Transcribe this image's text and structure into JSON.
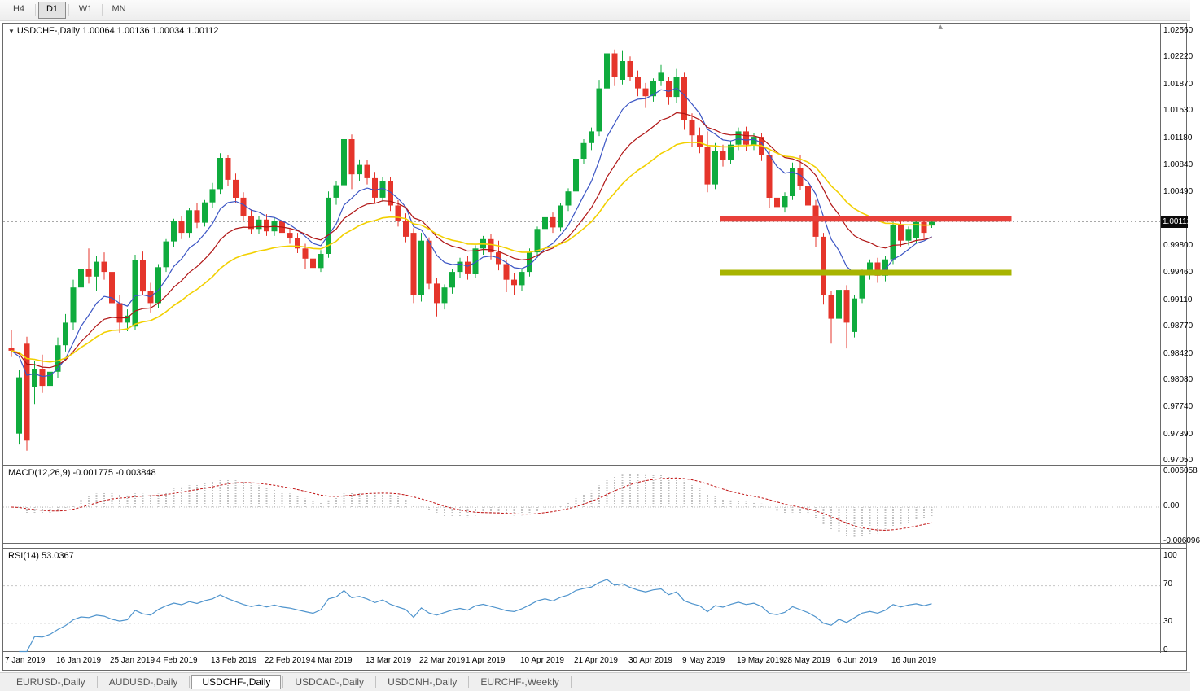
{
  "toolbar": {
    "timeframes": [
      "H4",
      "D1",
      "W1",
      "MN"
    ],
    "active_timeframe": "D1"
  },
  "icons": {
    "chart_menu": "▼",
    "autoscroll_marker": "▴"
  },
  "main_chart": {
    "title": "USDCHF-,Daily 1.00064 1.00136 1.00034 1.00112",
    "current_price_label": "1.00112",
    "price_axis_labels": [
      "1.02560",
      "1.02220",
      "1.01870",
      "1.01530",
      "1.01180",
      "1.00840",
      "1.00490",
      "0.99800",
      "0.99460",
      "0.99110",
      "0.98770",
      "0.98420",
      "0.98080",
      "0.97740",
      "0.97390",
      "0.97050"
    ]
  },
  "macd_panel": {
    "title": "MACD(12,26,9) -0.001775 -0.003848",
    "axis_labels": [
      "0.006058",
      "0.00",
      "-0.006096"
    ]
  },
  "rsi_panel": {
    "title": "RSI(14) 53.0367",
    "axis_labels": [
      "100",
      "70",
      "30",
      "0"
    ]
  },
  "time_axis": {
    "labels": [
      {
        "text": "7 Jan 2019",
        "index": 0
      },
      {
        "text": "16 Jan 2019",
        "index": 7
      },
      {
        "text": "25 Jan 2019",
        "index": 14
      },
      {
        "text": "4 Feb 2019",
        "index": 20
      },
      {
        "text": "13 Feb 2019",
        "index": 27
      },
      {
        "text": "22 Feb 2019",
        "index": 34
      },
      {
        "text": "4 Mar 2019",
        "index": 40
      },
      {
        "text": "13 Mar 2019",
        "index": 47
      },
      {
        "text": "22 Mar 2019",
        "index": 54
      },
      {
        "text": "1 Apr 2019",
        "index": 60
      },
      {
        "text": "10 Apr 2019",
        "index": 67
      },
      {
        "text": "21 Apr 2019",
        "index": 74
      },
      {
        "text": "30 Apr 2019",
        "index": 81
      },
      {
        "text": "9 May 2019",
        "index": 88
      },
      {
        "text": "19 May 2019",
        "index": 95
      },
      {
        "text": "28 May 2019",
        "index": 101
      },
      {
        "text": "6 Jun 2019",
        "index": 108
      },
      {
        "text": "16 Jun 2019",
        "index": 115
      }
    ]
  },
  "tabs": {
    "items": [
      "EURUSD-,Daily",
      "AUDUSD-,Daily",
      "USDCHF-,Daily",
      "USDCAD-,Daily",
      "USDCNH-,Daily",
      "EURCHF-,Weekly"
    ],
    "active_index": 2
  },
  "colors": {
    "bull": "#0fab3d",
    "bear": "#e5352b",
    "ma_fast": "#3b55c4",
    "ma_mid": "#b01515",
    "ma_slow": "#f2d000",
    "macd_hist": "#c0c0c0",
    "macd_signal": "#c01010",
    "rsi_line": "#4f94cd",
    "resistance": "#e8403a",
    "support": "#a8b400",
    "price_badge_bg": "#0a0a0a",
    "current_price_line": "#a8a8a8"
  },
  "chart_data": {
    "type": "candlestick",
    "symbol": "USDCHF",
    "timeframe": "Daily",
    "ohlc": {
      "open": 1.00064,
      "high": 1.00136,
      "low": 1.00034,
      "close": 1.00112
    },
    "ylim": [
      0.97,
      1.0265
    ],
    "candles": [
      [
        0.985,
        0.9872,
        0.9838,
        0.9846
      ],
      [
        0.974,
        0.9821,
        0.9726,
        0.9812
      ],
      [
        0.9855,
        0.9864,
        0.9718,
        0.9731
      ],
      [
        0.98,
        0.9833,
        0.9778,
        0.9823
      ],
      [
        0.9823,
        0.9841,
        0.9792,
        0.9801
      ],
      [
        0.9801,
        0.9827,
        0.9786,
        0.9819
      ],
      [
        0.9819,
        0.9863,
        0.9811,
        0.9853
      ],
      [
        0.9853,
        0.9893,
        0.9845,
        0.9882
      ],
      [
        0.9882,
        0.9937,
        0.9873,
        0.9927
      ],
      [
        0.9927,
        0.9962,
        0.9907,
        0.9951
      ],
      [
        0.9951,
        0.9977,
        0.9932,
        0.9941
      ],
      [
        0.9941,
        0.9967,
        0.9922,
        0.996
      ],
      [
        0.996,
        0.9972,
        0.9937,
        0.9947
      ],
      [
        0.9947,
        0.9963,
        0.9903,
        0.9907
      ],
      [
        0.9907,
        0.9917,
        0.9869,
        0.9882
      ],
      [
        0.9882,
        0.9899,
        0.9871,
        0.9891
      ],
      [
        0.9877,
        0.9969,
        0.9873,
        0.9962
      ],
      [
        0.9962,
        0.9973,
        0.9917,
        0.9922
      ],
      [
        0.9922,
        0.9933,
        0.9895,
        0.9907
      ],
      [
        0.9907,
        0.9957,
        0.9901,
        0.9953
      ],
      [
        0.9953,
        0.9989,
        0.9947,
        0.9986
      ],
      [
        0.9986,
        1.0015,
        0.9979,
        1.0012
      ],
      [
        1.0012,
        1.0019,
        0.9989,
        0.9997
      ],
      [
        0.9997,
        1.0029,
        0.9991,
        1.0026
      ],
      [
        1.0026,
        1.0035,
        1.0003,
        1.001
      ],
      [
        1.001,
        1.0039,
        1.0005,
        1.0036
      ],
      [
        1.0036,
        1.0061,
        1.0029,
        1.0053
      ],
      [
        1.0053,
        1.0099,
        1.0047,
        1.0093
      ],
      [
        1.0093,
        1.0097,
        1.0057,
        1.0065
      ],
      [
        1.0065,
        1.0073,
        1.0035,
        1.0042
      ],
      [
        1.0042,
        1.0049,
        1.0013,
        1.0019
      ],
      [
        1.0019,
        1.0027,
        0.9995,
        1.0002
      ],
      [
        1.0002,
        1.0019,
        0.9995,
        1.0014
      ],
      [
        1.0014,
        1.0021,
        0.9993,
        0.9999
      ],
      [
        0.9999,
        1.0017,
        0.9993,
        1.0012
      ],
      [
        1.0012,
        1.0017,
        0.9991,
        0.9997
      ],
      [
        0.9997,
        1.0003,
        0.9983,
        0.999
      ],
      [
        0.999,
        0.9997,
        0.9971,
        0.9977
      ],
      [
        0.9977,
        0.9983,
        0.9951,
        0.9964
      ],
      [
        0.9964,
        0.9973,
        0.9941,
        0.9952
      ],
      [
        0.9952,
        0.9975,
        0.9947,
        0.997
      ],
      [
        0.997,
        1.005,
        0.9965,
        1.0042
      ],
      [
        1.0042,
        1.0063,
        1.0033,
        1.0058
      ],
      [
        1.0058,
        1.0127,
        1.0051,
        1.0117
      ],
      [
        1.0117,
        1.0123,
        1.0053,
        1.0072
      ],
      [
        1.0072,
        1.0091,
        1.0063,
        1.0084
      ],
      [
        1.0084,
        1.009,
        1.0059,
        1.0067
      ],
      [
        1.0067,
        1.0075,
        1.0035,
        1.0042
      ],
      [
        1.0042,
        1.0069,
        1.0037,
        1.0063
      ],
      [
        1.0063,
        1.0069,
        1.0025,
        1.0032
      ],
      [
        1.0032,
        1.0039,
        1.0005,
        1.0012
      ],
      [
        1.0012,
        1.0022,
        0.9985,
        0.9992
      ],
      [
        0.9997,
        1.0003,
        0.9907,
        0.9917
      ],
      [
        0.9917,
        0.9997,
        0.9909,
        0.9987
      ],
      [
        0.9987,
        0.9991,
        0.9925,
        0.9932
      ],
      [
        0.9932,
        0.9939,
        0.989,
        0.9907
      ],
      [
        0.9907,
        0.9931,
        0.9899,
        0.9927
      ],
      [
        0.9927,
        0.9951,
        0.9919,
        0.9947
      ],
      [
        0.9947,
        0.9965,
        0.9939,
        0.996
      ],
      [
        0.996,
        0.9967,
        0.9937,
        0.9944
      ],
      [
        0.9944,
        0.9981,
        0.9939,
        0.9977
      ],
      [
        0.9977,
        0.9993,
        0.9969,
        0.9989
      ],
      [
        0.9989,
        0.9995,
        0.9963,
        0.9972
      ],
      [
        0.9972,
        0.9987,
        0.9949,
        0.9957
      ],
      [
        0.9957,
        0.9963,
        0.9921,
        0.9937
      ],
      [
        0.9937,
        0.9945,
        0.9917,
        0.993
      ],
      [
        0.993,
        0.9951,
        0.9923,
        0.9947
      ],
      [
        0.9947,
        0.9977,
        0.9941,
        0.9972
      ],
      [
        0.9972,
        1.0005,
        0.9965,
        1.0002
      ],
      [
        1.0002,
        1.0022,
        0.9995,
        1.0017
      ],
      [
        1.0017,
        1.0023,
        0.9997,
        1.0004
      ],
      [
        1.0004,
        1.0035,
        0.9999,
        1.0032
      ],
      [
        1.0032,
        1.0054,
        1.0025,
        1.005
      ],
      [
        1.005,
        1.0099,
        1.0043,
        1.0092
      ],
      [
        1.0092,
        1.0117,
        1.0085,
        1.0112
      ],
      [
        1.0112,
        1.0132,
        1.0103,
        1.0127
      ],
      [
        1.0127,
        1.0193,
        1.0121,
        1.0182
      ],
      [
        1.0182,
        1.0237,
        1.0175,
        1.0227
      ],
      [
        1.0227,
        1.0232,
        1.0185,
        1.0197
      ],
      [
        1.0193,
        1.023,
        1.0187,
        1.0217
      ],
      [
        1.0217,
        1.0223,
        1.0191,
        1.0197
      ],
      [
        1.0197,
        1.0205,
        1.0172,
        1.0182
      ],
      [
        1.0182,
        1.0189,
        1.0157,
        1.0172
      ],
      [
        1.0172,
        1.0195,
        1.0165,
        1.0192
      ],
      [
        1.0192,
        1.0212,
        1.0185,
        1.0202
      ],
      [
        1.0192,
        1.0197,
        1.0161,
        1.0171
      ],
      [
        1.0171,
        1.0207,
        1.0163,
        1.0197
      ],
      [
        1.0197,
        1.0202,
        1.0129,
        1.0142
      ],
      [
        1.0142,
        1.015,
        1.0107,
        1.0122
      ],
      [
        1.0122,
        1.0132,
        1.0099,
        1.0107
      ],
      [
        1.0107,
        1.0127,
        1.0049,
        1.0059
      ],
      [
        1.0059,
        1.0112,
        1.0053,
        1.0102
      ],
      [
        1.0102,
        1.011,
        1.0082,
        1.009
      ],
      [
        1.009,
        1.0115,
        1.0085,
        1.011
      ],
      [
        1.011,
        1.0132,
        1.0103,
        1.0127
      ],
      [
        1.0127,
        1.0133,
        1.0102,
        1.011
      ],
      [
        1.011,
        1.0125,
        1.0103,
        1.012
      ],
      [
        1.012,
        1.0125,
        1.0089,
        1.0097
      ],
      [
        1.0097,
        1.0102,
        1.0029,
        1.0042
      ],
      [
        1.0042,
        1.005,
        1.0017,
        1.003
      ],
      [
        1.003,
        1.0049,
        1.0023,
        1.0044
      ],
      [
        1.0044,
        1.0087,
        1.0039,
        1.008
      ],
      [
        1.008,
        1.0097,
        1.0052,
        1.0057
      ],
      [
        1.0057,
        1.0065,
        1.0025,
        1.0032
      ],
      [
        1.0032,
        1.0039,
        0.9979,
        0.9992
      ],
      [
        0.9992,
        0.9997,
        0.9905,
        0.9917
      ],
      [
        0.9917,
        0.9923,
        0.9855,
        0.9887
      ],
      [
        0.9887,
        0.9929,
        0.9875,
        0.9924
      ],
      [
        0.9924,
        0.993,
        0.9849,
        0.9882
      ],
      [
        0.987,
        0.9917,
        0.9863,
        0.9913
      ],
      [
        0.9913,
        0.995,
        0.9907,
        0.9947
      ],
      [
        0.9947,
        0.9963,
        0.9937,
        0.9959
      ],
      [
        0.9959,
        0.9965,
        0.9933,
        0.9942
      ],
      [
        0.9942,
        0.9967,
        0.9935,
        0.9963
      ],
      [
        0.9963,
        1.0012,
        0.9957,
        1.0007
      ],
      [
        1.0007,
        1.0012,
        0.9979,
        0.9987
      ],
      [
        0.9987,
        1.0005,
        0.9981,
        1.0002
      ],
      [
        0.999,
        1.0016,
        0.9984,
        1.0011
      ],
      [
        1.0011,
        1.0018,
        0.9989,
        0.9997
      ],
      [
        1.00064,
        1.00136,
        1.00034,
        1.00112
      ]
    ],
    "overlays": [
      {
        "name": "ma-fast",
        "period": 8
      },
      {
        "name": "ma-mid",
        "period": 16
      },
      {
        "name": "ma-slow",
        "period": 28
      }
    ],
    "objects": [
      {
        "name": "resistance-line",
        "price": 1.0015,
        "start_index": 92,
        "end_index": 129,
        "thickness": 7
      },
      {
        "name": "support-line",
        "price": 0.9946,
        "start_index": 92,
        "end_index": 129,
        "thickness": 7
      }
    ],
    "current_price": 1.00112,
    "indicators": {
      "macd": {
        "fast": 12,
        "slow": 26,
        "signal": 9,
        "current": -0.001775,
        "current_signal": -0.003848,
        "ylim": [
          -0.006096,
          0.006058
        ]
      },
      "rsi": {
        "period": 14,
        "current": 53.0367,
        "levels": [
          70,
          30
        ],
        "ylim": [
          0,
          100
        ]
      }
    }
  }
}
